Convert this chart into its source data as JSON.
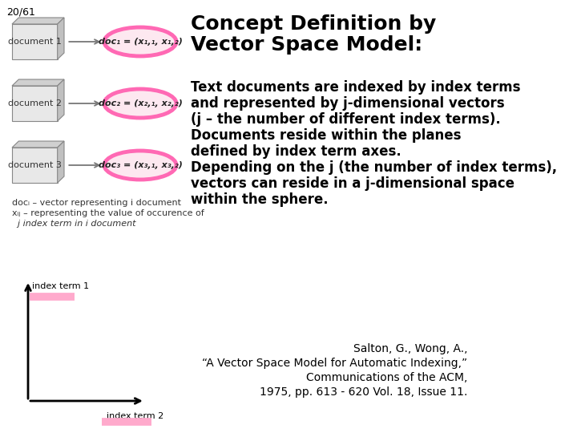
{
  "slide_number": "20/61",
  "title_line1": "Concept Definition by",
  "title_line2": "Vector Space Model:",
  "body_lines": [
    "Text documents are indexed by index terms",
    "and represented by j-dimensional vectors",
    "(j – the number of different index terms).",
    "Documents reside within the planes",
    "defined by index term axes.",
    "Depending on the j (the number of index terms),",
    "vectors can reside in a j-dimensional space",
    "within the sphere."
  ],
  "footnote_lines": [
    "Salton, G., Wong, A.,",
    "“A Vector Space Model for Automatic Indexing,”",
    "Communications of the ACM,",
    "1975, pp. 613 - 620 Vol. 18, Issue 11."
  ],
  "legend_line1": "docᵢ – vector representing i document",
  "legend_line2": "xᵢⱼ – representing the value of occurence of",
  "legend_line3": "  j index term in i document",
  "doc_labels": [
    "document 1",
    "document 2",
    "document 3"
  ],
  "vec_label1": "doc₁ = (x₁,₁, x₁,₂)",
  "vec_label2": "doc₂ = (x₂,₁, x₂,₂)",
  "vec_label3": "doc₃ = (x₃,₁, x₃,₂)",
  "bg_color": "#ffffff",
  "title_color": "#000000",
  "body_color": "#000000",
  "ellipse_edgecolor": "#ff69b4",
  "ellipse_facecolor": "#fde8f0",
  "doc_face": "#e8e8e8",
  "doc_edge": "#888888",
  "doc_side": "#c0c0c0",
  "doc_top": "#d0d0d0",
  "arrow_color": "#777777",
  "axis_color": "#000000",
  "pink_bar_color": "#ffaacc",
  "axis_label_color": "#000000",
  "footnote_color": "#000000",
  "slide_num_color": "#000000",
  "body_fontsize": 12,
  "title_fontsize": 18,
  "footnote_fontsize": 10,
  "legend_fontsize": 8,
  "doc_fontsize": 8,
  "vec_fontsize": 8,
  "axis_label_fontsize": 8
}
